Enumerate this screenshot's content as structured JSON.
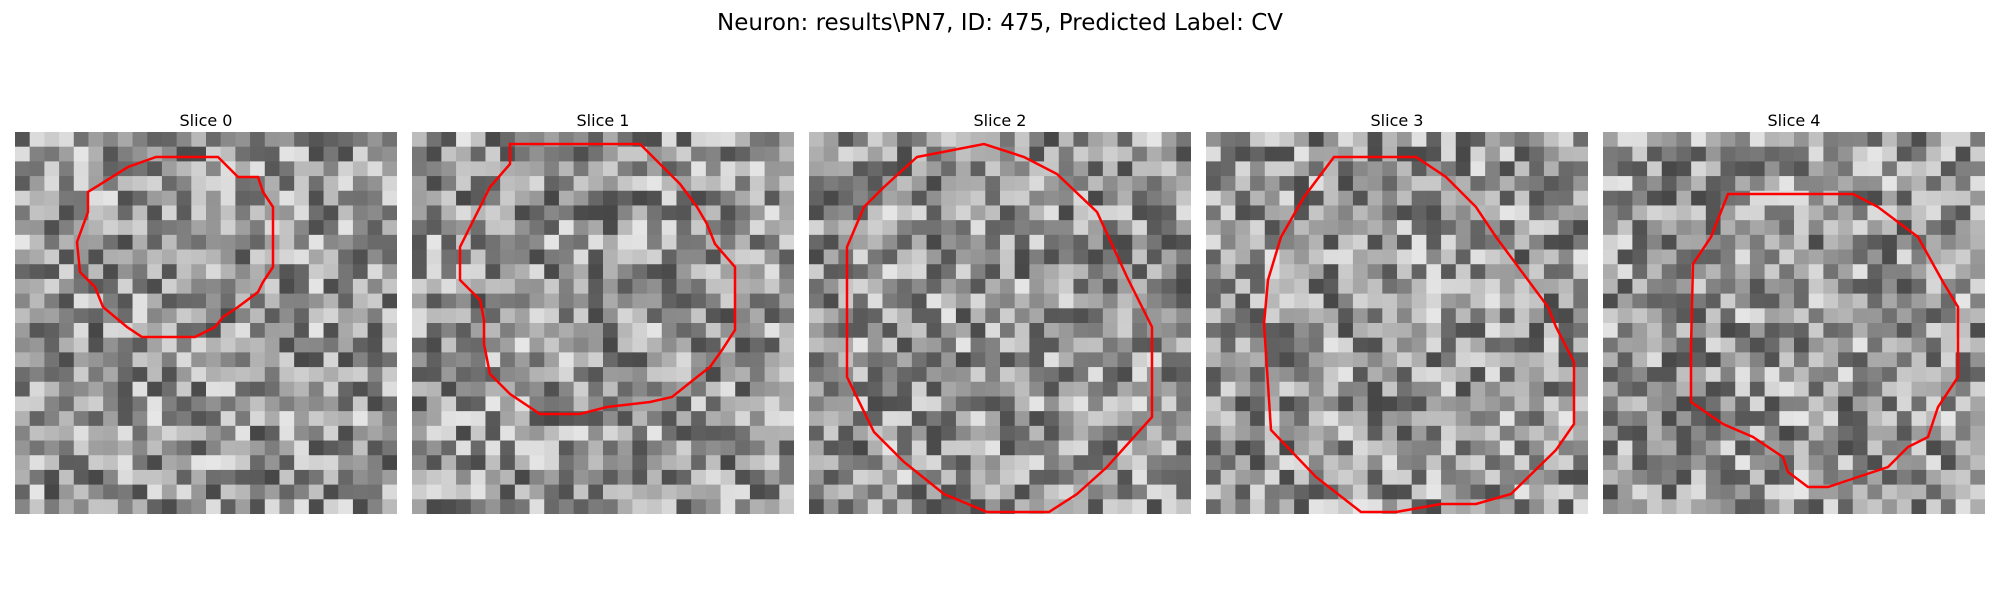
{
  "figure": {
    "title": "Neuron: results\\PN7, ID: 475, Predicted Label: CV"
  },
  "slices": [
    {
      "title": "Slice 0"
    },
    {
      "title": "Slice 1"
    },
    {
      "title": "Slice 2"
    },
    {
      "title": "Slice 3"
    },
    {
      "title": "Slice 4"
    }
  ],
  "colors": {
    "contour": "#ff0000",
    "background": "#ffffff"
  }
}
